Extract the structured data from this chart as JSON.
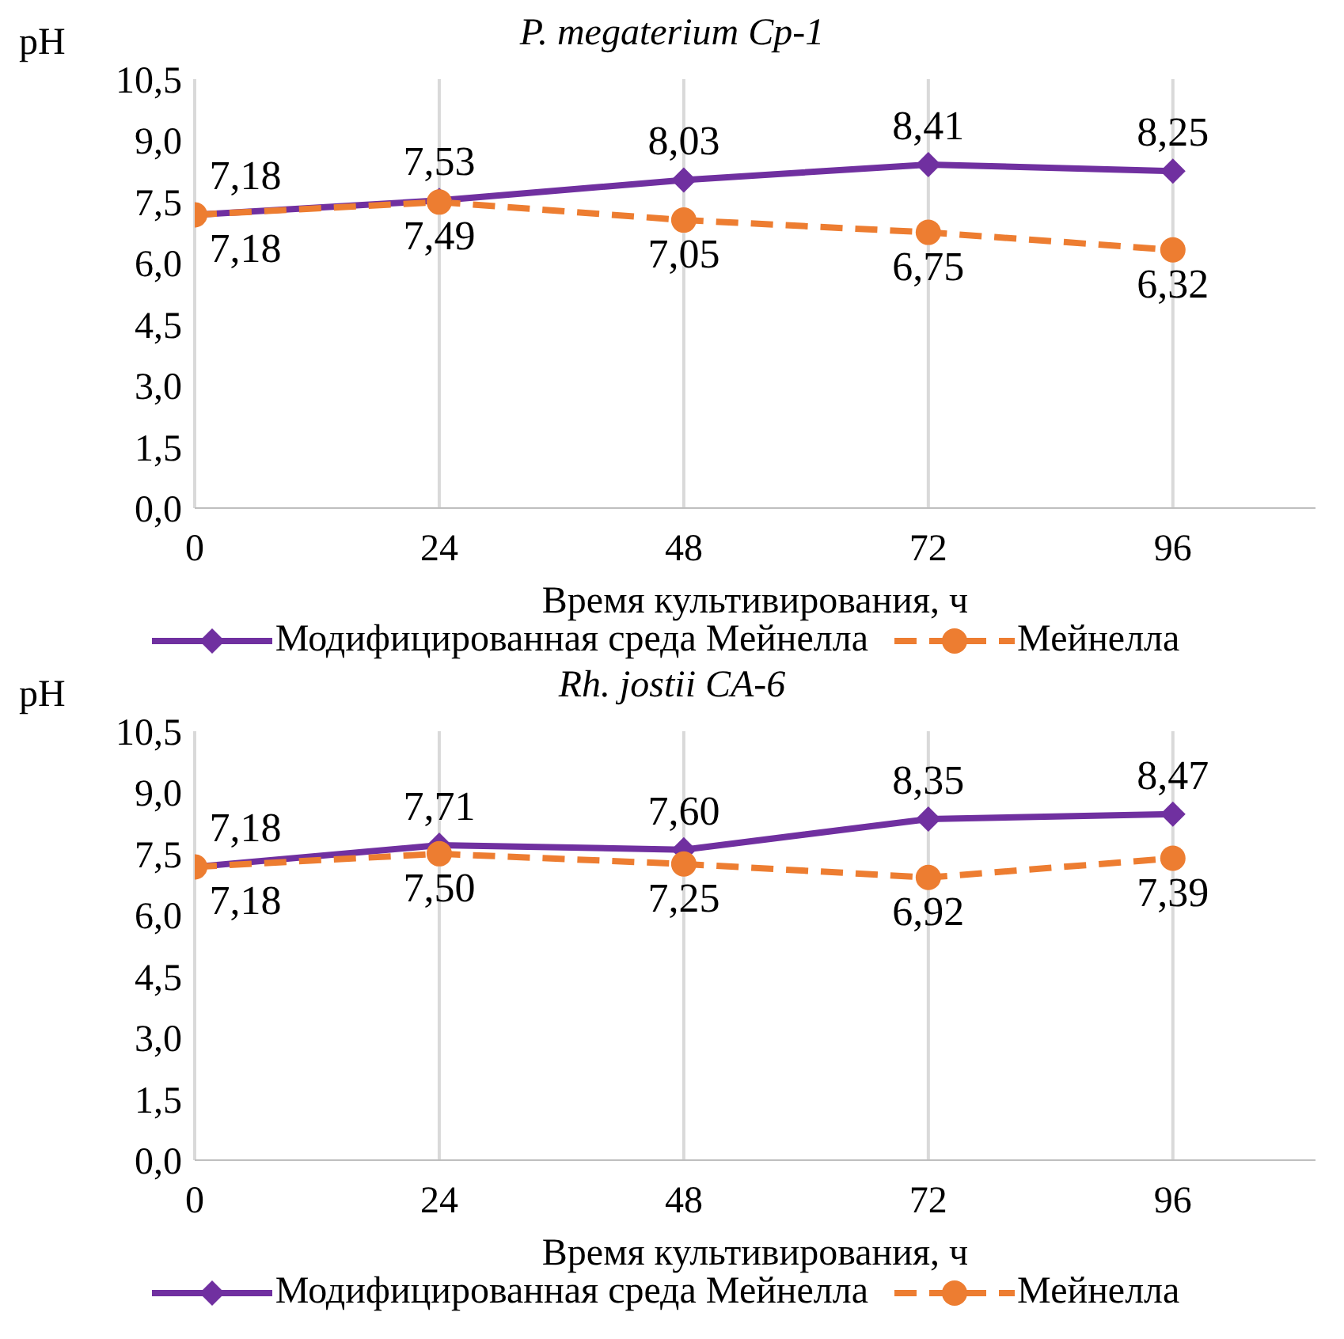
{
  "chart_data": [
    {
      "type": "line",
      "title": "P. megaterium Cp-1",
      "xlabel": "Время культивирования, ч",
      "ylabel": "pH",
      "x": [
        0,
        24,
        48,
        72,
        96
      ],
      "xlim": [
        0,
        110
      ],
      "xticks": [
        0,
        24,
        48,
        72,
        96
      ],
      "ylim": [
        0,
        10.5
      ],
      "yticks": [
        {
          "value": 0,
          "label": "0,0"
        },
        {
          "value": 1.5,
          "label": "1,5"
        },
        {
          "value": 3,
          "label": "3,0"
        },
        {
          "value": 4.5,
          "label": "4,5"
        },
        {
          "value": 6,
          "label": "6,0"
        },
        {
          "value": 7.5,
          "label": "7,5"
        },
        {
          "value": 9,
          "label": "9,0"
        },
        {
          "value": 10.5,
          "label": "10,5"
        }
      ],
      "grid": "x",
      "legend": "bottom",
      "series": [
        {
          "name": "Модифицированная среда Мейнелла",
          "color": "#7030a0",
          "marker": "diamond",
          "line_style": "solid",
          "values": [
            7.18,
            7.53,
            8.03,
            8.41,
            8.25
          ],
          "value_labels": [
            "7,18",
            "7,53",
            "8,03",
            "8,41",
            "8,25"
          ]
        },
        {
          "name": "Мейнелла",
          "color": "#ed7d31",
          "marker": "circle",
          "line_style": "dashed",
          "values": [
            7.18,
            7.49,
            7.05,
            6.75,
            6.32
          ],
          "value_labels": [
            "7,18",
            "7,49",
            "7,05",
            "6,75",
            "6,32"
          ]
        }
      ]
    },
    {
      "type": "line",
      "title": "Rh. jostii CA-6",
      "xlabel": "Время культивирования, ч",
      "ylabel": "pH",
      "x": [
        0,
        24,
        48,
        72,
        96
      ],
      "xlim": [
        0,
        110
      ],
      "xticks": [
        0,
        24,
        48,
        72,
        96
      ],
      "ylim": [
        0,
        10.5
      ],
      "yticks": [
        {
          "value": 0,
          "label": "0,0"
        },
        {
          "value": 1.5,
          "label": "1,5"
        },
        {
          "value": 3,
          "label": "3,0"
        },
        {
          "value": 4.5,
          "label": "4,5"
        },
        {
          "value": 6,
          "label": "6,0"
        },
        {
          "value": 7.5,
          "label": "7,5"
        },
        {
          "value": 9,
          "label": "9,0"
        },
        {
          "value": 10.5,
          "label": "10,5"
        }
      ],
      "grid": "x",
      "legend": "bottom",
      "series": [
        {
          "name": "Модифицированная среда Мейнелла",
          "color": "#7030a0",
          "marker": "diamond",
          "line_style": "solid",
          "values": [
            7.18,
            7.71,
            7.6,
            8.35,
            8.47
          ],
          "value_labels": [
            "7,18",
            "7,71",
            "7,60",
            "8,35",
            "8,47"
          ]
        },
        {
          "name": "Мейнелла",
          "color": "#ed7d31",
          "marker": "circle",
          "line_style": "dashed",
          "values": [
            7.18,
            7.5,
            7.25,
            6.92,
            7.39
          ],
          "value_labels": [
            "7,18",
            "7,50",
            "7,25",
            "6,92",
            "7,39"
          ]
        }
      ]
    }
  ]
}
